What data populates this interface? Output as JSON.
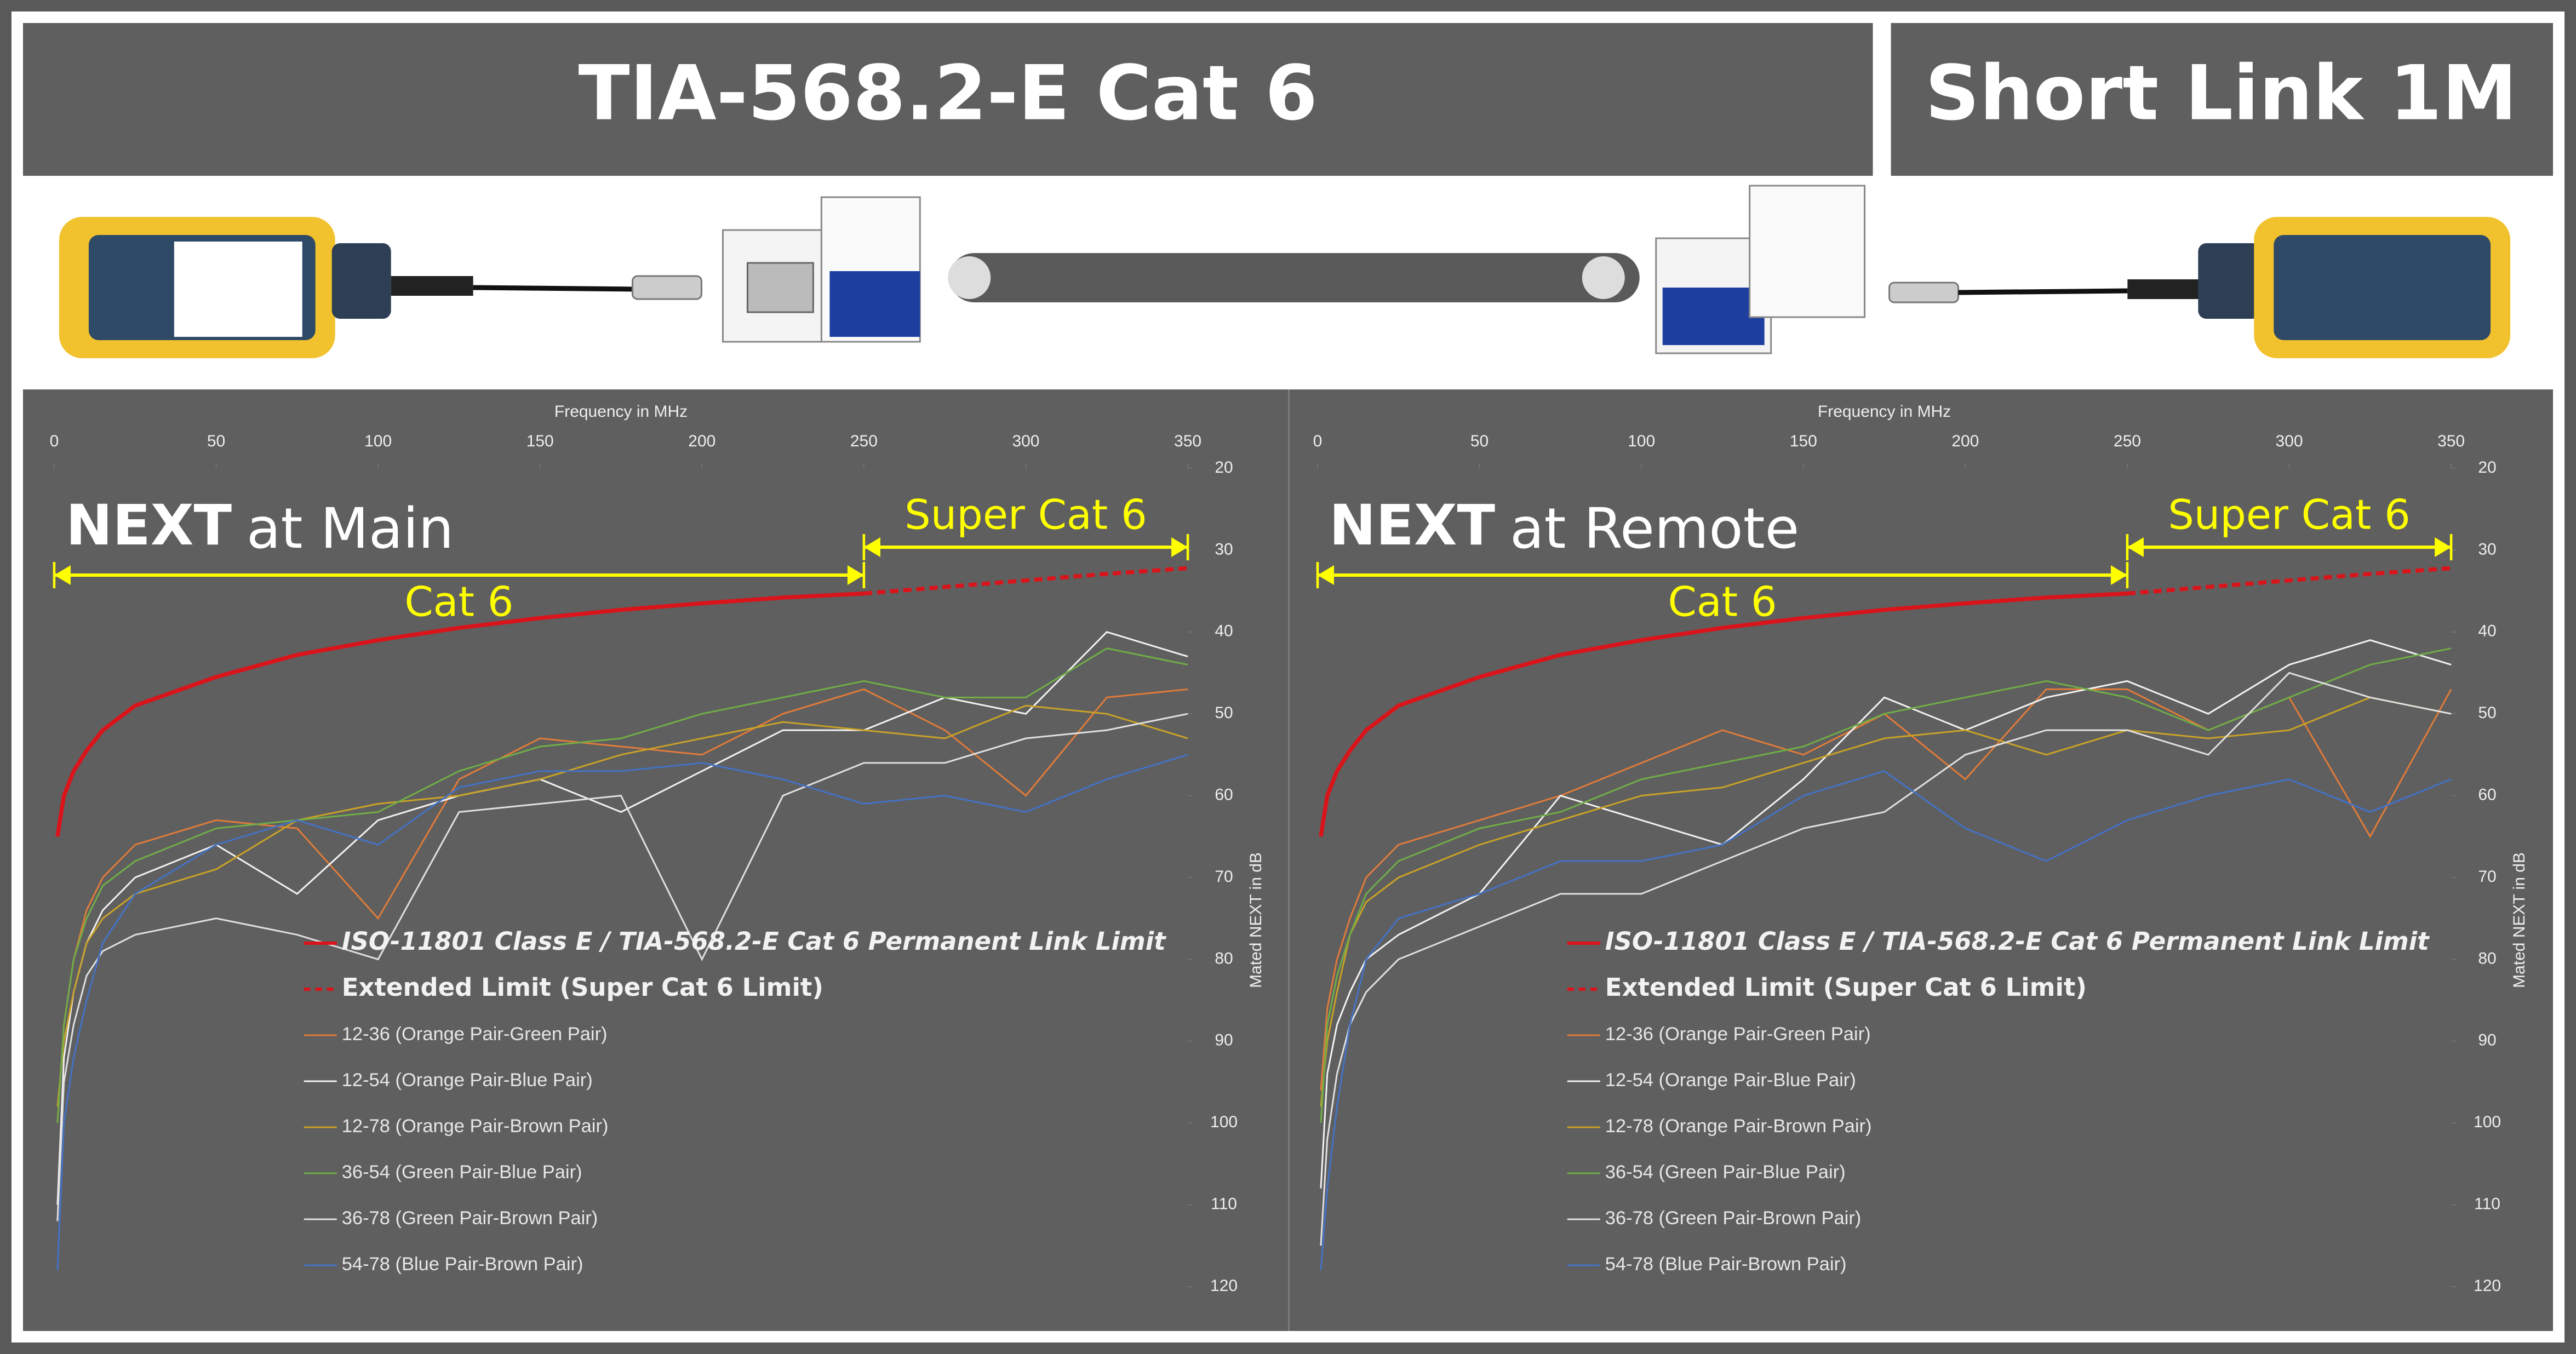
{
  "header": {
    "standard": "TIA-568.2-E Cat 6",
    "link": "Short Link 1M"
  },
  "chart_data": [
    {
      "type": "line",
      "title_emphasis": "NEXT",
      "title": "at Main",
      "x_label": "Frequency in MHz",
      "y_label": "Mated NEXT in dB",
      "xlim": [
        0,
        350
      ],
      "xticks": [
        0,
        50,
        100,
        150,
        200,
        250,
        300,
        350
      ],
      "ylim": [
        20,
        120
      ],
      "yticks": [
        20,
        30,
        40,
        50,
        60,
        70,
        80,
        90,
        100,
        110,
        120
      ],
      "y_inverted": true,
      "annotations": [
        {
          "text": "Cat 6",
          "x": [
            0,
            250
          ]
        },
        {
          "text": "Super Cat 6",
          "x": [
            250,
            350
          ]
        }
      ],
      "x": [
        1,
        3,
        6,
        10,
        15,
        25,
        50,
        75,
        100,
        125,
        150,
        175,
        200,
        225,
        250,
        275,
        300,
        325,
        350
      ],
      "series": [
        {
          "name": "ISO-11801 Class E / TIA-568.2-E Cat 6 Permanent Link Limit",
          "color": "#d9141b",
          "legend_bold": true,
          "values": [
            65,
            60,
            57,
            54.5,
            52,
            49,
            45.5,
            42.8,
            41,
            39.5,
            38.3,
            37.3,
            36.5,
            35.8,
            35.3,
            null,
            null,
            null,
            null
          ]
        },
        {
          "name": "Extended Limit (Super Cat 6 Limit)",
          "color": "#d9141b",
          "dashed": true,
          "legend_bold": true,
          "values": [
            null,
            null,
            null,
            null,
            null,
            null,
            null,
            null,
            null,
            null,
            null,
            null,
            null,
            null,
            35.3,
            34.5,
            33.7,
            32.9,
            32.2
          ]
        },
        {
          "name": "12-36 (Orange Pair-Green Pair)",
          "color": "#e07b39",
          "values": [
            100,
            88,
            80,
            74,
            70,
            66,
            63,
            64,
            75,
            58,
            53,
            54,
            55,
            50,
            47,
            52,
            60,
            48,
            47
          ]
        },
        {
          "name": "12-54 (Orange Pair-Blue Pair)",
          "color": "#f2f2f2",
          "values": [
            110,
            92,
            84,
            78,
            74,
            70,
            66,
            72,
            63,
            60,
            58,
            62,
            57,
            52,
            52,
            48,
            50,
            40,
            43
          ]
        },
        {
          "name": "12-78 (Orange Pair-Brown Pair)",
          "color": "#c9a227",
          "values": [
            98,
            90,
            84,
            78,
            75,
            72,
            69,
            63,
            61,
            60,
            58,
            55,
            53,
            51,
            52,
            53,
            49,
            50,
            53
          ]
        },
        {
          "name": "36-54 (Green Pair-Blue Pair)",
          "color": "#70ad47",
          "values": [
            100,
            88,
            80,
            75,
            71,
            68,
            64,
            63,
            62,
            57,
            54,
            53,
            50,
            48,
            46,
            48,
            48,
            42,
            44
          ]
        },
        {
          "name": "36-78 (Green Pair-Brown Pair)",
          "color": "#e0e0e0",
          "values": [
            112,
            95,
            88,
            82,
            79,
            77,
            75,
            77,
            80,
            62,
            61,
            60,
            80,
            60,
            56,
            56,
            53,
            52,
            50
          ]
        },
        {
          "name": "54-78 (Blue Pair-Brown Pair)",
          "color": "#4472c4",
          "values": [
            118,
            100,
            92,
            85,
            78,
            72,
            66,
            63,
            66,
            59,
            57,
            57,
            56,
            58,
            61,
            60,
            62,
            58,
            55
          ]
        }
      ]
    },
    {
      "type": "line",
      "title_emphasis": "NEXT",
      "title": "at Remote",
      "x_label": "Frequency in MHz",
      "y_label": "Mated NEXT in dB",
      "xlim": [
        0,
        350
      ],
      "xticks": [
        0,
        50,
        100,
        150,
        200,
        250,
        300,
        350
      ],
      "ylim": [
        20,
        120
      ],
      "yticks": [
        20,
        30,
        40,
        50,
        60,
        70,
        80,
        90,
        100,
        110,
        120
      ],
      "y_inverted": true,
      "annotations": [
        {
          "text": "Cat 6",
          "x": [
            0,
            250
          ]
        },
        {
          "text": "Super Cat 6",
          "x": [
            250,
            350
          ]
        }
      ],
      "x": [
        1,
        3,
        6,
        10,
        15,
        25,
        50,
        75,
        100,
        125,
        150,
        175,
        200,
        225,
        250,
        275,
        300,
        325,
        350
      ],
      "series": [
        {
          "name": "ISO-11801 Class E / TIA-568.2-E Cat 6 Permanent Link Limit",
          "color": "#d9141b",
          "legend_bold": true,
          "values": [
            65,
            60,
            57,
            54.5,
            52,
            49,
            45.5,
            42.8,
            41,
            39.5,
            38.3,
            37.3,
            36.5,
            35.8,
            35.3,
            null,
            null,
            null,
            null
          ]
        },
        {
          "name": "Extended Limit (Super Cat 6 Limit)",
          "color": "#d9141b",
          "dashed": true,
          "legend_bold": true,
          "values": [
            null,
            null,
            null,
            null,
            null,
            null,
            null,
            null,
            null,
            null,
            null,
            null,
            null,
            null,
            35.3,
            34.5,
            33.7,
            32.9,
            32.2
          ]
        },
        {
          "name": "12-36 (Orange Pair-Green Pair)",
          "color": "#e07b39",
          "values": [
            96,
            86,
            80,
            75,
            70,
            66,
            63,
            60,
            56,
            52,
            55,
            50,
            58,
            47,
            47,
            52,
            48,
            65,
            47
          ]
        },
        {
          "name": "12-54 (Orange Pair-Blue Pair)",
          "color": "#f2f2f2",
          "values": [
            108,
            94,
            88,
            84,
            80,
            77,
            72,
            60,
            63,
            66,
            58,
            48,
            52,
            48,
            46,
            50,
            44,
            41,
            44
          ]
        },
        {
          "name": "12-78 (Orange Pair-Brown Pair)",
          "color": "#c9a227",
          "values": [
            98,
            90,
            84,
            77,
            73,
            70,
            66,
            63,
            60,
            59,
            56,
            53,
            52,
            55,
            52,
            53,
            52,
            48,
            50
          ]
        },
        {
          "name": "36-54 (Green Pair-Blue Pair)",
          "color": "#70ad47",
          "values": [
            100,
            88,
            82,
            77,
            72,
            68,
            64,
            62,
            58,
            56,
            54,
            50,
            48,
            46,
            48,
            52,
            48,
            44,
            42
          ]
        },
        {
          "name": "36-78 (Green Pair-Brown Pair)",
          "color": "#e0e0e0",
          "values": [
            115,
            102,
            94,
            88,
            84,
            80,
            76,
            72,
            72,
            68,
            64,
            62,
            55,
            52,
            52,
            55,
            45,
            48,
            50
          ]
        },
        {
          "name": "54-78 (Blue Pair-Brown Pair)",
          "color": "#4472c4",
          "values": [
            118,
            108,
            98,
            88,
            80,
            75,
            72,
            68,
            68,
            66,
            60,
            57,
            64,
            68,
            63,
            60,
            58,
            62,
            58
          ]
        }
      ]
    }
  ]
}
